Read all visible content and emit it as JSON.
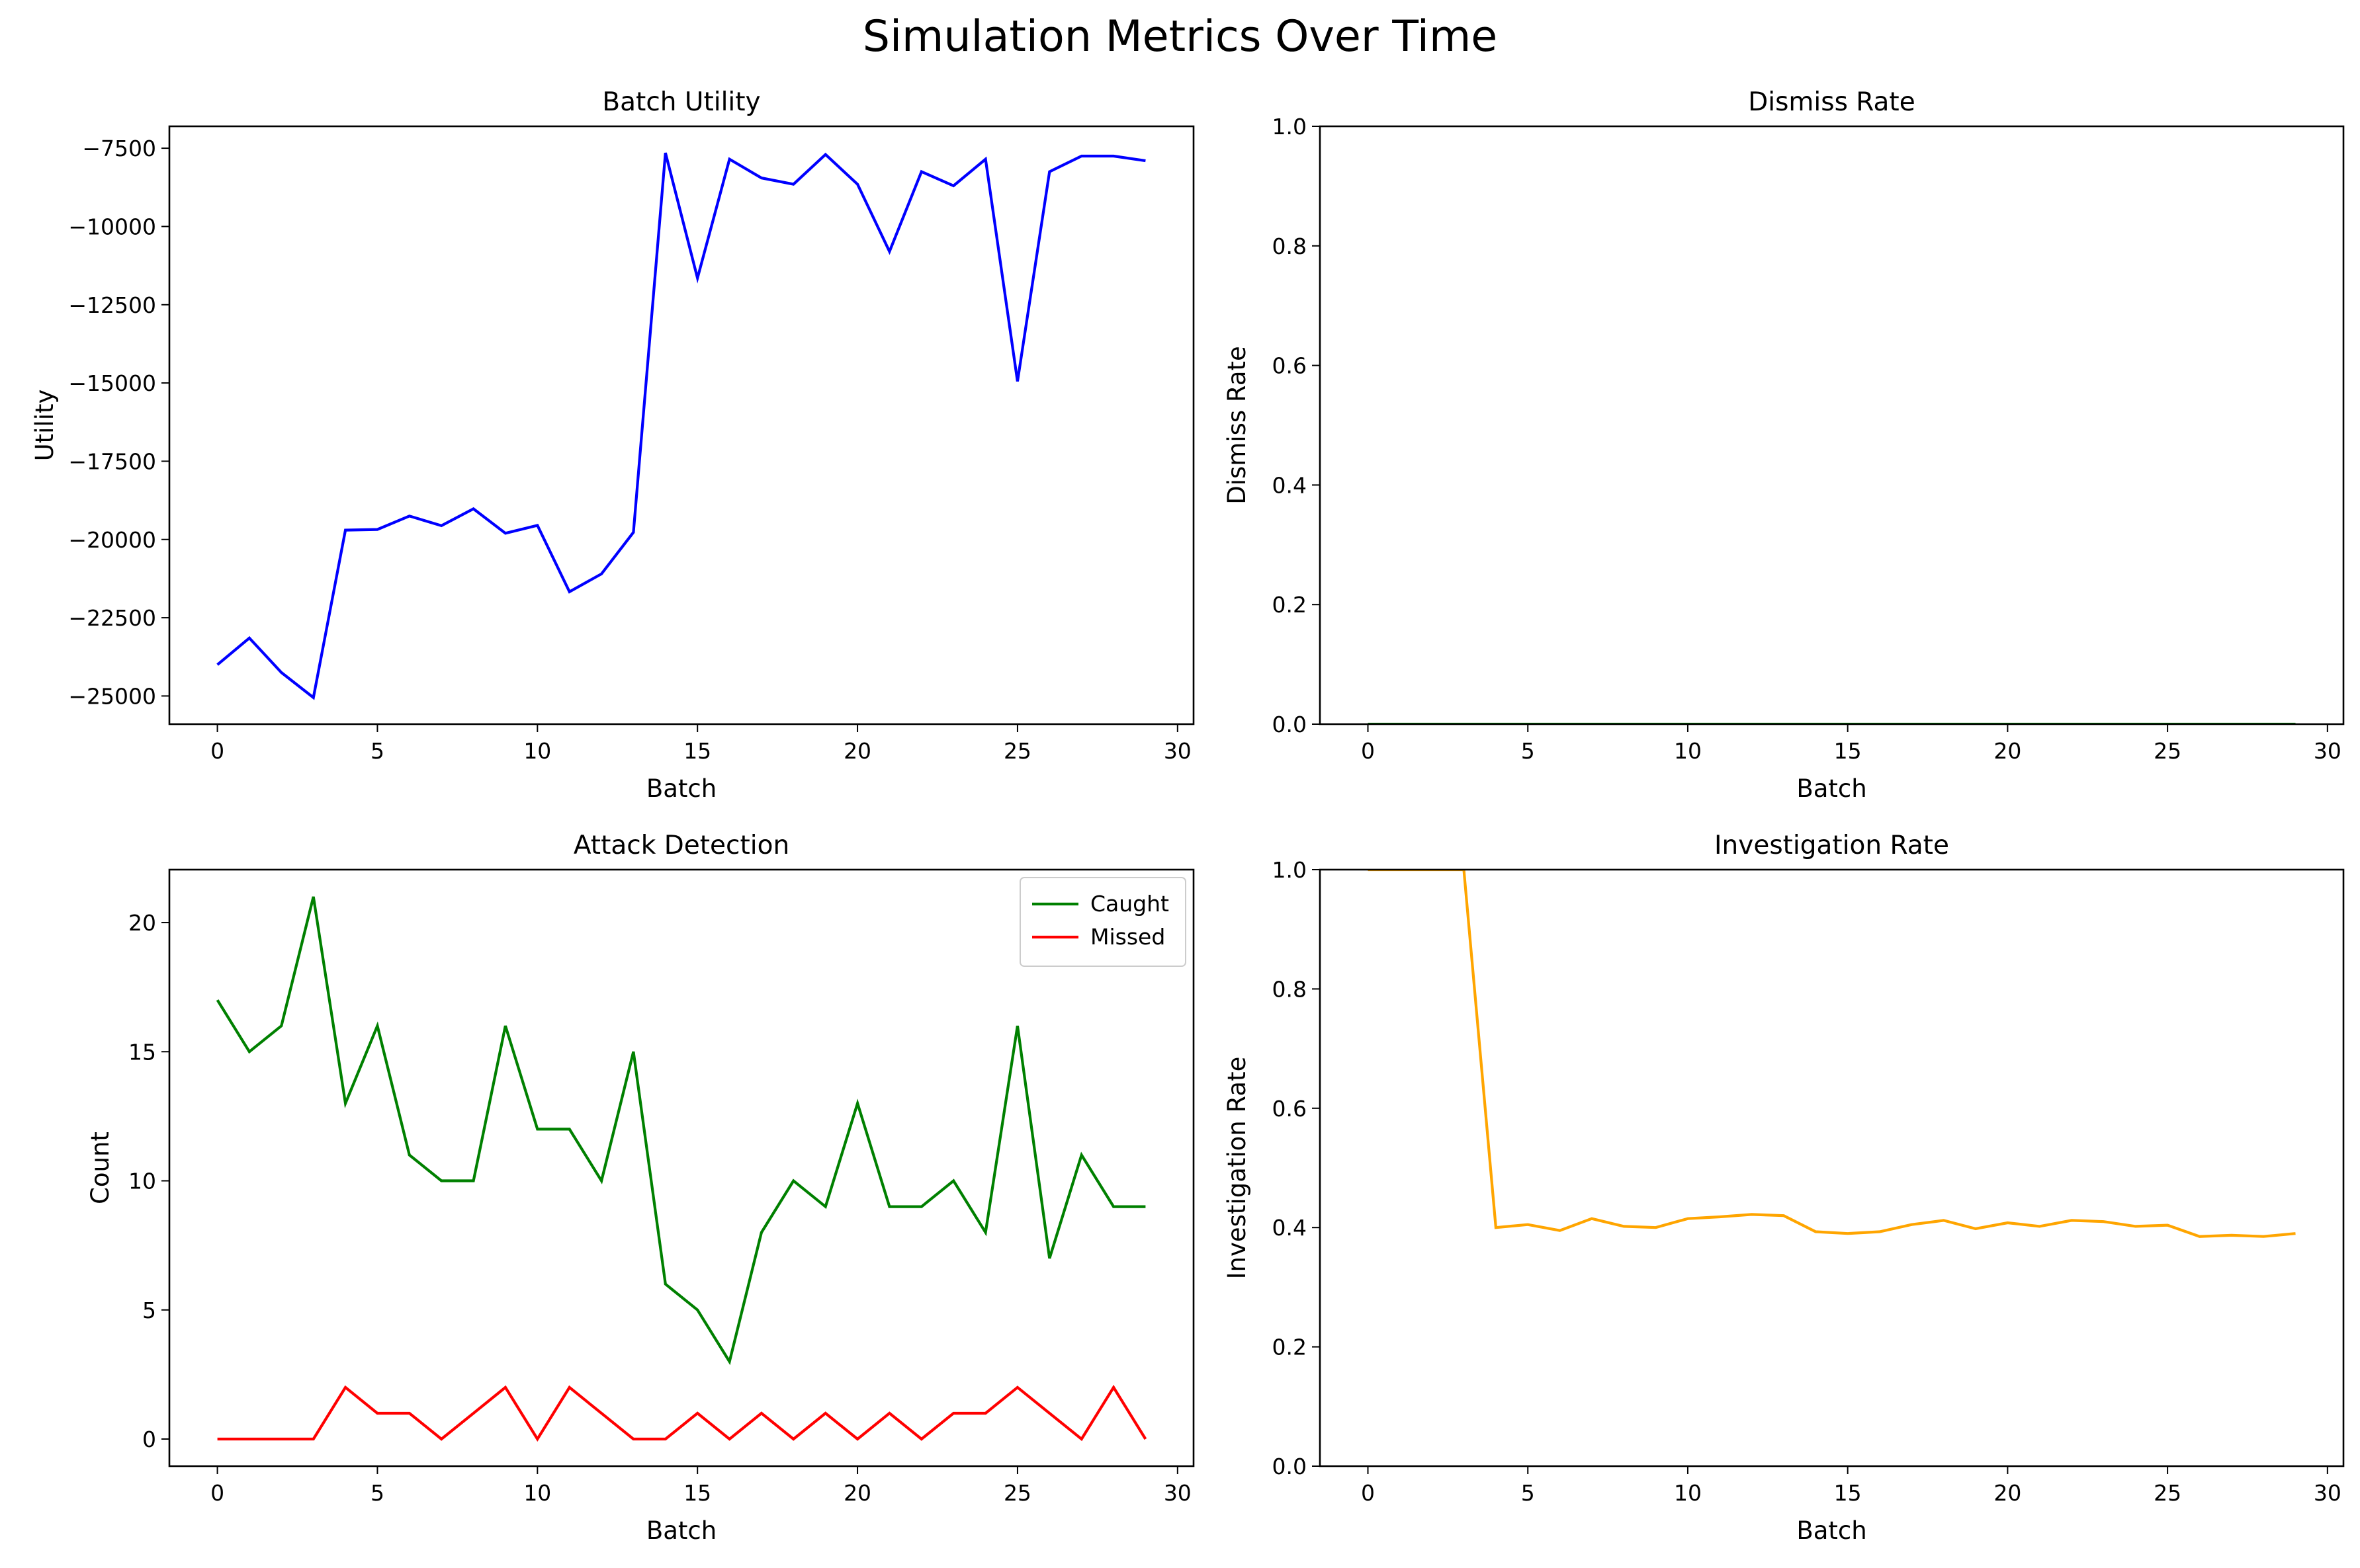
{
  "figure_title": "Simulation Metrics Over Time",
  "chart_data": [
    {
      "type": "line",
      "title": "Batch Utility",
      "xlabel": "Batch",
      "ylabel": "Utility",
      "xlim": [
        -1.5,
        30.5
      ],
      "ylim": [
        -25900,
        -6800
      ],
      "xticks": [
        0,
        5,
        10,
        15,
        20,
        25,
        30
      ],
      "yticks": [
        -25000,
        -22500,
        -20000,
        -17500,
        -15000,
        -12500,
        -10000,
        -7500
      ],
      "ytick_labels": [
        "−25000",
        "−22500",
        "−20000",
        "−17500",
        "−15000",
        "−12500",
        "−10000",
        "−7500"
      ],
      "grid": false,
      "legend": null,
      "x": [
        0,
        1,
        2,
        3,
        4,
        5,
        6,
        7,
        8,
        9,
        10,
        11,
        12,
        13,
        14,
        15,
        16,
        17,
        18,
        19,
        20,
        21,
        22,
        23,
        24,
        25,
        26,
        27,
        28,
        29
      ],
      "series": [
        {
          "color": "#0000ff",
          "values": [
            -24000,
            -23150,
            -24250,
            -25050,
            -19700,
            -19680,
            -19250,
            -19560,
            -19020,
            -19800,
            -19550,
            -21670,
            -21100,
            -19770,
            -7650,
            -11650,
            -7850,
            -8450,
            -8650,
            -7700,
            -8650,
            -10800,
            -8250,
            -8700,
            -7850,
            -14950,
            -8250,
            -7750,
            -7750,
            -7900
          ]
        }
      ]
    },
    {
      "type": "line",
      "title": "Dismiss Rate",
      "xlabel": "Batch",
      "ylabel": "Dismiss Rate",
      "xlim": [
        -1.5,
        30.5
      ],
      "ylim": [
        0,
        1
      ],
      "xticks": [
        0,
        5,
        10,
        15,
        20,
        25,
        30
      ],
      "yticks": [
        0,
        0.2,
        0.4,
        0.6,
        0.8,
        1.0
      ],
      "ytick_labels": [
        "0.0",
        "0.2",
        "0.4",
        "0.6",
        "0.8",
        "1.0"
      ],
      "grid": false,
      "legend": null,
      "x": [
        0,
        1,
        2,
        3,
        4,
        5,
        6,
        7,
        8,
        9,
        10,
        11,
        12,
        13,
        14,
        15,
        16,
        17,
        18,
        19,
        20,
        21,
        22,
        23,
        24,
        25,
        26,
        27,
        28,
        29
      ],
      "series": [
        {
          "color": "#008000",
          "values": [
            0,
            0,
            0,
            0,
            0,
            0,
            0,
            0,
            0,
            0,
            0,
            0,
            0,
            0,
            0,
            0,
            0,
            0,
            0,
            0,
            0,
            0,
            0,
            0,
            0,
            0,
            0,
            0,
            0,
            0
          ]
        }
      ]
    },
    {
      "type": "line",
      "title": "Attack Detection",
      "xlabel": "Batch",
      "ylabel": "Count",
      "xlim": [
        -1.5,
        30.5
      ],
      "ylim": [
        -1.05,
        22.05
      ],
      "xticks": [
        0,
        5,
        10,
        15,
        20,
        25,
        30
      ],
      "yticks": [
        0,
        5,
        10,
        15,
        20
      ],
      "ytick_labels": [
        "0",
        "5",
        "10",
        "15",
        "20"
      ],
      "grid": false,
      "legend": "upper right",
      "x": [
        0,
        1,
        2,
        3,
        4,
        5,
        6,
        7,
        8,
        9,
        10,
        11,
        12,
        13,
        14,
        15,
        16,
        17,
        18,
        19,
        20,
        21,
        22,
        23,
        24,
        25,
        26,
        27,
        28,
        29
      ],
      "series": [
        {
          "name": "Caught",
          "color": "#008000",
          "values": [
            17,
            15,
            16,
            21,
            13,
            16,
            11,
            10,
            10,
            16,
            12,
            12,
            10,
            15,
            6,
            5,
            3,
            8,
            10,
            9,
            13,
            9,
            9,
            10,
            8,
            16,
            7,
            11,
            9,
            9
          ]
        },
        {
          "name": "Missed",
          "color": "#ff0000",
          "values": [
            0,
            0,
            0,
            0,
            2,
            1,
            1,
            0,
            1,
            2,
            0,
            2,
            1,
            0,
            0,
            1,
            0,
            1,
            0,
            1,
            0,
            1,
            0,
            1,
            1,
            2,
            1,
            0,
            2,
            0
          ]
        }
      ]
    },
    {
      "type": "line",
      "title": "Investigation Rate",
      "xlabel": "Batch",
      "ylabel": "Investigation Rate",
      "xlim": [
        -1.5,
        30.5
      ],
      "ylim": [
        0,
        1
      ],
      "xticks": [
        0,
        5,
        10,
        15,
        20,
        25,
        30
      ],
      "yticks": [
        0,
        0.2,
        0.4,
        0.6,
        0.8,
        1.0
      ],
      "ytick_labels": [
        "0.0",
        "0.2",
        "0.4",
        "0.6",
        "0.8",
        "1.0"
      ],
      "grid": false,
      "legend": null,
      "x": [
        0,
        1,
        2,
        3,
        4,
        5,
        6,
        7,
        8,
        9,
        10,
        11,
        12,
        13,
        14,
        15,
        16,
        17,
        18,
        19,
        20,
        21,
        22,
        23,
        24,
        25,
        26,
        27,
        28,
        29
      ],
      "series": [
        {
          "color": "#ffa500",
          "values": [
            1.0,
            1.0,
            1.0,
            1.0,
            0.4,
            0.405,
            0.395,
            0.415,
            0.402,
            0.4,
            0.415,
            0.418,
            0.422,
            0.42,
            0.393,
            0.39,
            0.393,
            0.405,
            0.412,
            0.398,
            0.408,
            0.402,
            0.412,
            0.41,
            0.402,
            0.404,
            0.385,
            0.387,
            0.385,
            0.39
          ]
        }
      ]
    }
  ]
}
